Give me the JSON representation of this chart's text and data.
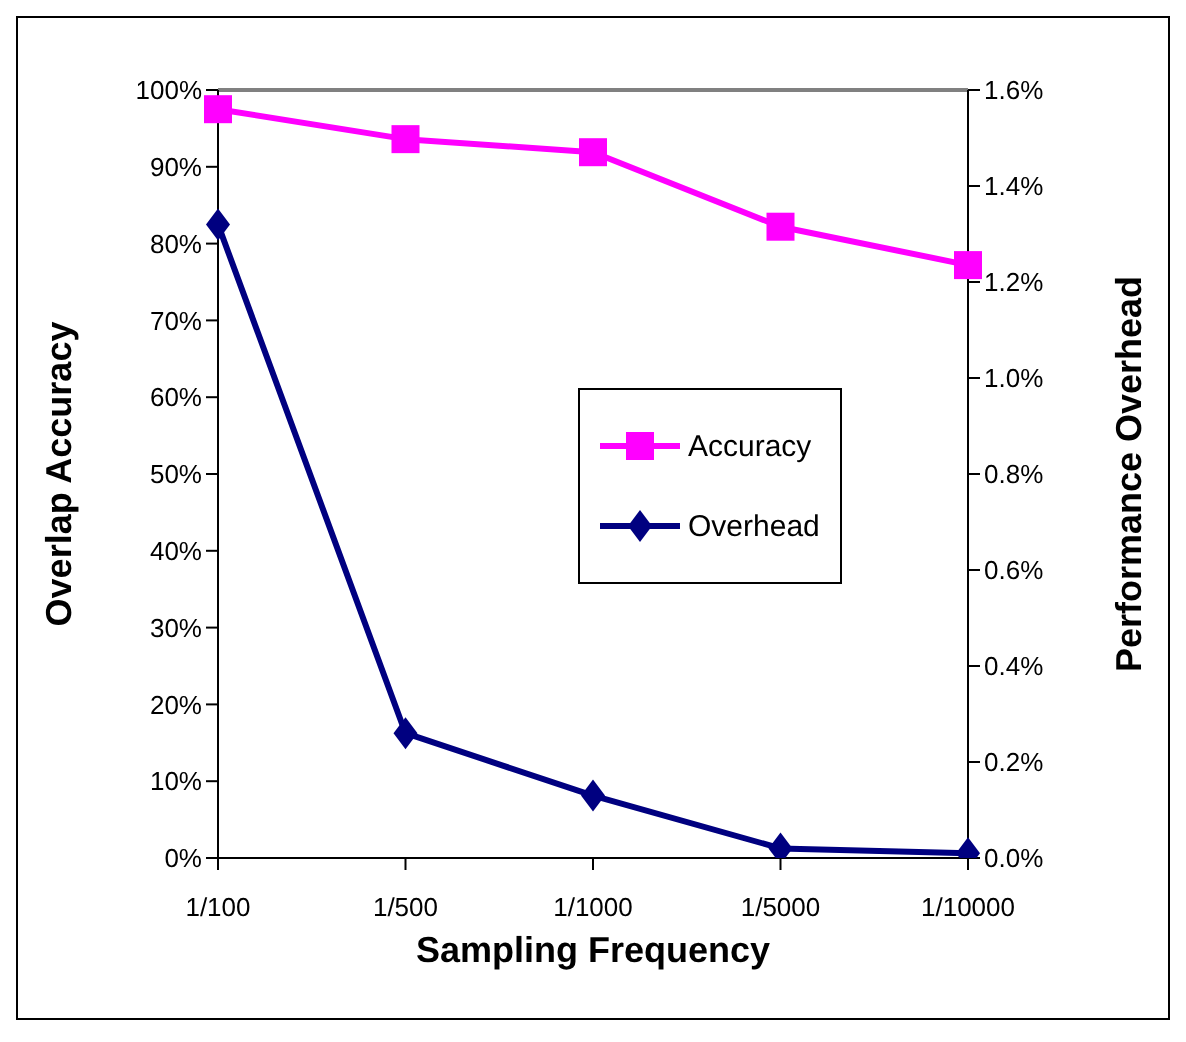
{
  "chart_data": {
    "type": "line",
    "xlabel": "Sampling Frequency",
    "ylabel": "Overlap Accuracy",
    "y2label": "Performance Overhead",
    "categories": [
      "1/100",
      "1/500",
      "1/1000",
      "1/5000",
      "1/10000"
    ],
    "series": [
      {
        "name": "Accuracy",
        "color": "#ff00ff",
        "marker": "square",
        "values": [
          97.5,
          93.6,
          91.9,
          82.2,
          77.2
        ]
      },
      {
        "name": "Overhead",
        "color": "#000080",
        "marker": "diamond",
        "axis": "y2",
        "values": [
          1.32,
          0.26,
          0.13,
          0.02,
          0.01
        ]
      }
    ],
    "ylim": [
      0,
      100
    ],
    "yticks": [
      {
        "value": 0,
        "label": "0%"
      },
      {
        "value": 10,
        "label": "10%"
      },
      {
        "value": 20,
        "label": "20%"
      },
      {
        "value": 30,
        "label": "30%"
      },
      {
        "value": 40,
        "label": "40%"
      },
      {
        "value": 50,
        "label": "50%"
      },
      {
        "value": 60,
        "label": "60%"
      },
      {
        "value": 70,
        "label": "70%"
      },
      {
        "value": 80,
        "label": "80%"
      },
      {
        "value": 90,
        "label": "90%"
      },
      {
        "value": 100,
        "label": "100%"
      }
    ],
    "y2lim": [
      0,
      1.6
    ],
    "y2ticks": [
      {
        "value": 0,
        "label": "0.0%"
      },
      {
        "value": 0.2,
        "label": "0.2%"
      },
      {
        "value": 0.4,
        "label": "0.4%"
      },
      {
        "value": 0.6,
        "label": "0.6%"
      },
      {
        "value": 0.8,
        "label": "0.8%"
      },
      {
        "value": 1.0,
        "label": "1.0%"
      },
      {
        "value": 1.2,
        "label": "1.2%"
      },
      {
        "value": 1.4,
        "label": "1.4%"
      },
      {
        "value": 1.6,
        "label": "1.6%"
      }
    ],
    "grid": false,
    "legend": "right"
  }
}
